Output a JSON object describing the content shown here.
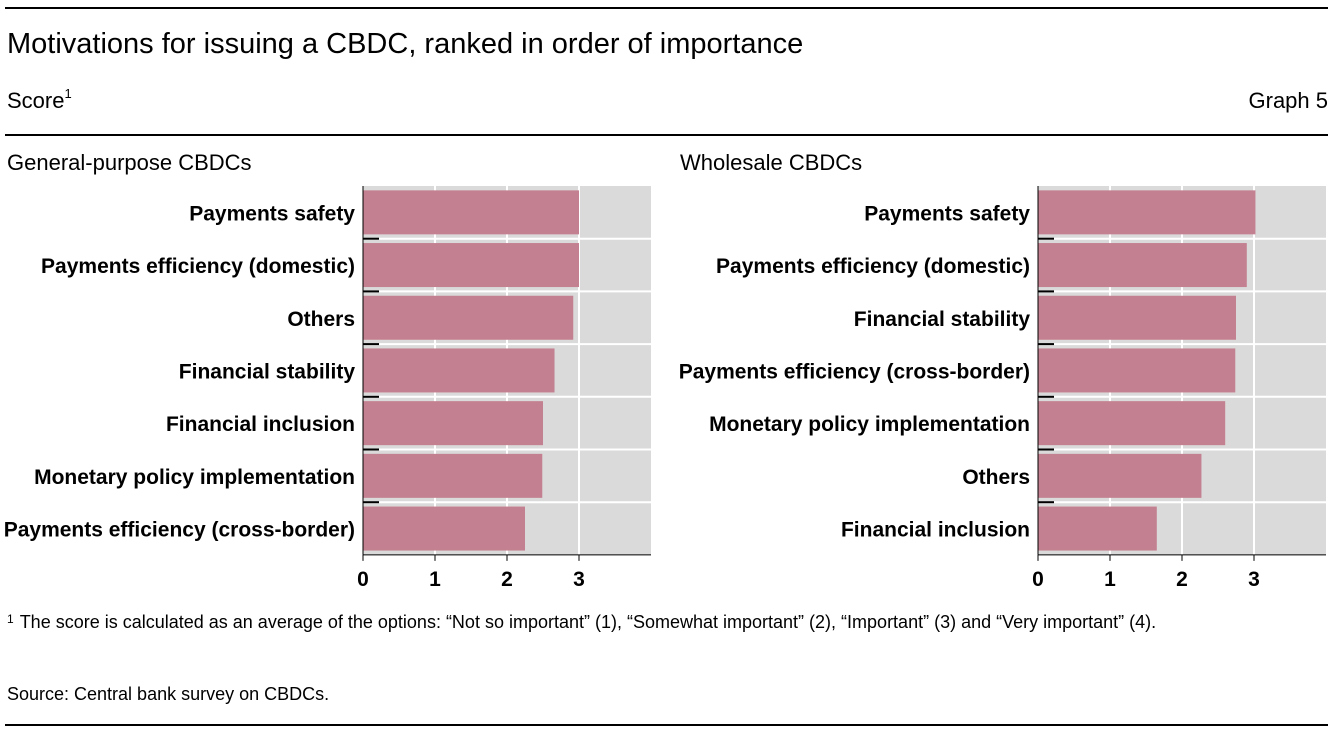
{
  "header": {
    "title": "Motivations for issuing a CBDC, ranked in order of importance",
    "subtitle": "Score",
    "subtitle_note_marker": "1",
    "graph_label": "Graph 5"
  },
  "chart_data": [
    {
      "type": "bar",
      "orientation": "horizontal",
      "title": "General-purpose CBDCs",
      "categories": [
        "Payments safety",
        "Payments efficiency (domestic)",
        "Others",
        "Financial stability",
        "Financial inclusion",
        "Monetary policy implementation",
        "Payments efficiency (cross-border)"
      ],
      "values": [
        3.0,
        3.0,
        2.92,
        2.66,
        2.5,
        2.49,
        2.25
      ],
      "xlim": [
        0,
        4
      ],
      "xticks": [
        "0",
        "1",
        "2",
        "3"
      ],
      "grid": true,
      "bar_color": "#c38090",
      "background_color": "#dadada"
    },
    {
      "type": "bar",
      "orientation": "horizontal",
      "title": "Wholesale CBDCs",
      "categories": [
        "Payments safety",
        "Payments efficiency (domestic)",
        "Financial stability",
        "Payments efficiency (cross-border)",
        "Monetary policy implementation",
        "Others",
        "Financial inclusion"
      ],
      "values": [
        3.02,
        2.9,
        2.75,
        2.74,
        2.6,
        2.27,
        1.65
      ],
      "xlim": [
        0,
        4
      ],
      "xticks": [
        "0",
        "1",
        "2",
        "3"
      ],
      "grid": true,
      "bar_color": "#c38090",
      "background_color": "#dadada"
    }
  ],
  "footnote": {
    "marker": "1",
    "text": "The score is calculated as an average of the options: “Not so important” (1), “Somewhat important” (2), “Important” (3) and “Very important” (4)."
  },
  "source": "Source: Central bank survey on CBDCs."
}
